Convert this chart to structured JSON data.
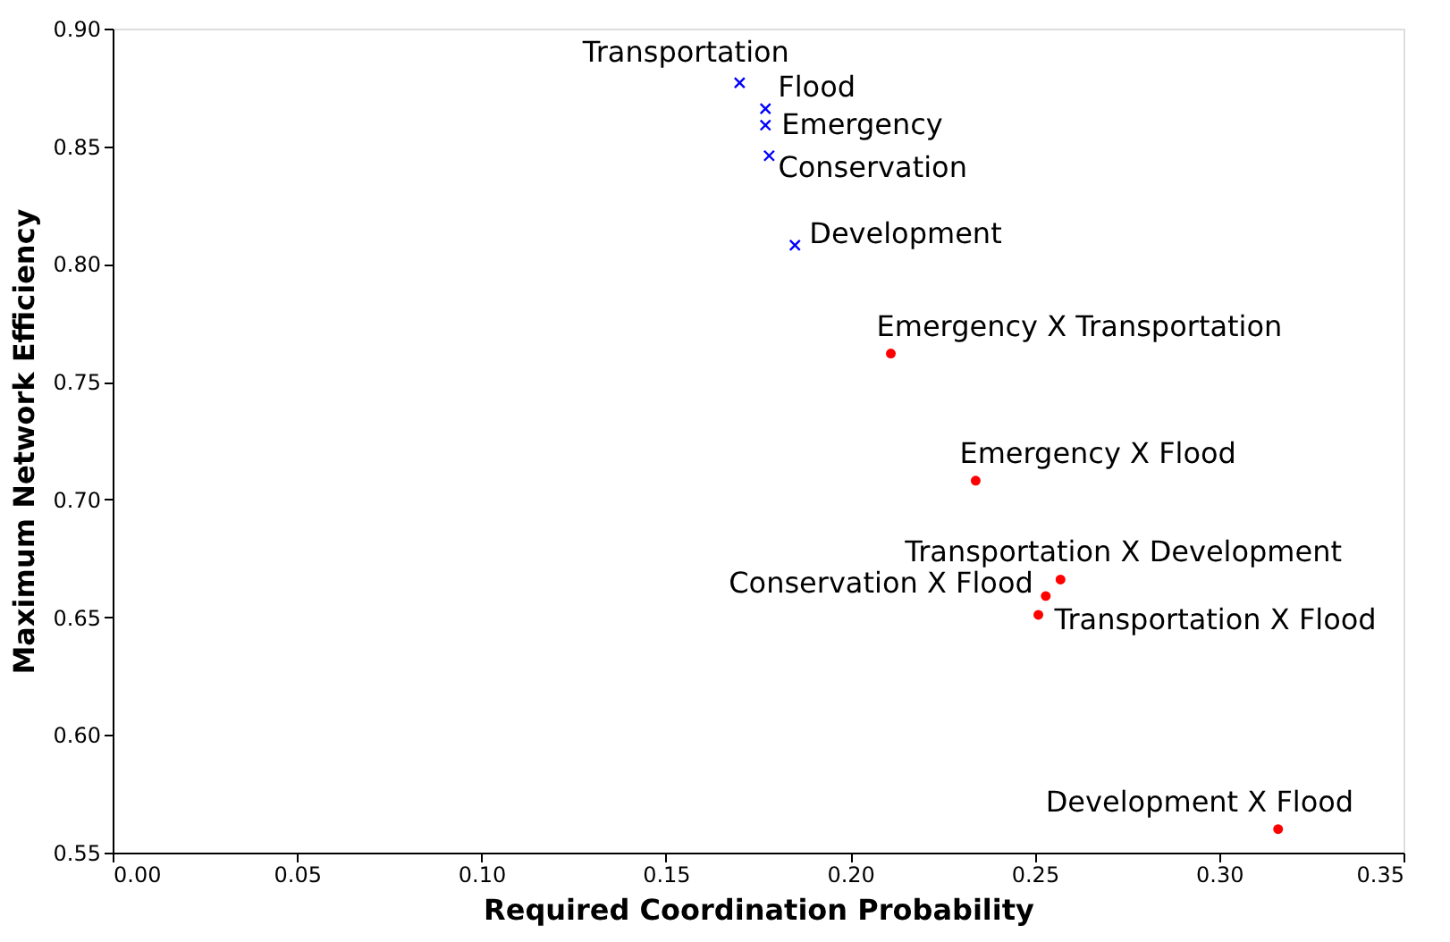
{
  "chart_data": {
    "type": "scatter",
    "xlabel": "Required Coordination Probability",
    "ylabel": "Maximum Network Efficiency",
    "xlim": [
      0,
      0.35
    ],
    "xticks": [
      {
        "value": 0,
        "label": "0.00"
      },
      0.05,
      {
        "value": 0.1,
        "label": "0.10"
      },
      0.15,
      {
        "value": 0.2,
        "label": "0.20"
      },
      0.25,
      {
        "value": 0.3,
        "label": "0.30"
      },
      0.35
    ],
    "ylim": [
      0.55,
      0.9
    ],
    "yticks": [
      0.55,
      {
        "value": 0.6,
        "label": "0.60"
      },
      0.65,
      {
        "value": 0.7,
        "label": "0.70"
      },
      0.75,
      {
        "value": 0.8,
        "label": "0.80"
      },
      0.85,
      {
        "value": 0.9,
        "label": "0.90"
      }
    ],
    "grid": false,
    "series": [
      {
        "color": "#0000ff",
        "marker": "cross",
        "x": [
          0.17,
          0.177,
          0.177,
          0.178,
          0.185
        ],
        "values": [
          0.877,
          0.866,
          0.859,
          0.846,
          0.808
        ]
      },
      {
        "color": "#ff0000",
        "marker": "circle",
        "x": [
          0.211,
          0.234,
          0.257,
          0.253,
          0.251,
          0.316
        ],
        "values": [
          0.762,
          0.708,
          0.666,
          0.659,
          0.651,
          0.56
        ]
      }
    ],
    "annotations": [
      {
        "text": "Transportation",
        "x": 0.17,
        "y": 0.877
      },
      {
        "text": "Flood",
        "x": 0.177,
        "y": 0.866
      },
      {
        "text": "Emergency",
        "x": 0.177,
        "y": 0.859
      },
      {
        "text": "Conservation",
        "x": 0.178,
        "y": 0.846
      },
      {
        "text": "Development",
        "x": 0.185,
        "y": 0.808
      },
      {
        "text": "Emergency X Transportation",
        "x": 0.211,
        "y": 0.762
      },
      {
        "text": "Emergency X Flood",
        "x": 0.234,
        "y": 0.708
      },
      {
        "text": "Transportation X Development",
        "x": 0.257,
        "y": 0.666
      },
      {
        "text": "Conservation X Flood",
        "x": 0.253,
        "y": 0.659
      },
      {
        "text": "Transportation X Flood",
        "x": 0.251,
        "y": 0.651
      },
      {
        "text": "Development X Flood",
        "x": 0.316,
        "y": 0.56
      }
    ]
  }
}
